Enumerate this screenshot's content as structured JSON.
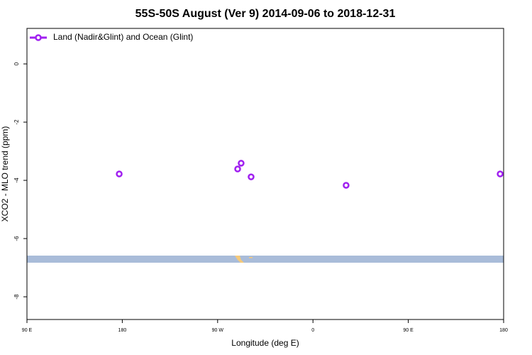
{
  "chart_data": {
    "type": "scatter",
    "title": "55S-50S August (Ver 9)   2014-09-06 to 2018-12-31",
    "x_label": "Longitude (deg E)",
    "y_label": "XCO2 - MLO trend (ppm)",
    "series": [
      {
        "name": "Land (Nadir&Glint) and Ocean (Glint)",
        "color": "#a020f0",
        "x": [
          177.1,
          288.9,
          292.2,
          301.6,
          391.3,
          536.7
        ],
        "values": [
          -3.78,
          -3.61,
          -3.41,
          -3.88,
          -4.17,
          -3.78
        ]
      }
    ],
    "xlim": [
      90,
      540
    ],
    "xticks": [
      {
        "value": 90,
        "label": "90 E"
      },
      180,
      {
        "value": 270,
        "label": "90 W"
      },
      {
        "value": 360,
        "label": "0"
      },
      {
        "value": 450,
        "label": "90 E"
      },
      {
        "value": 540,
        "label": "180"
      }
    ],
    "ylim": [
      -8.78,
      1.22
    ],
    "yticks": [
      0,
      -2,
      -4,
      -6,
      -8
    ],
    "legend": "top-left"
  }
}
